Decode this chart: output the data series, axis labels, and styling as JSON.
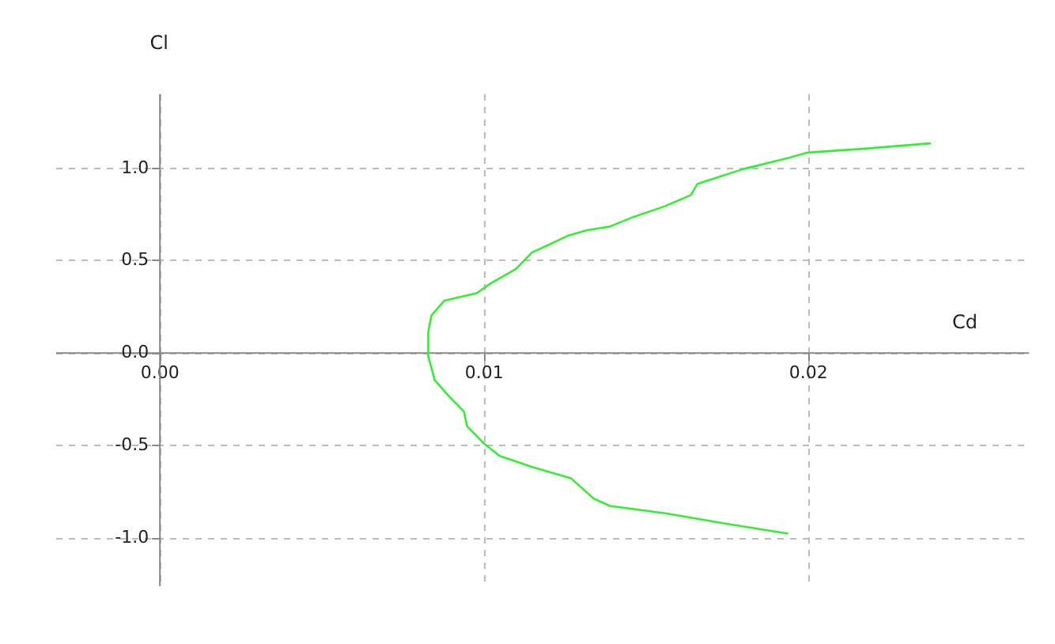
{
  "chart_data": {
    "type": "line",
    "xlabel": "Cd",
    "ylabel": "Cl",
    "x": [
      0.0238,
      0.0217,
      0.02,
      0.0194,
      0.018,
      0.0166,
      0.0164,
      0.0156,
      0.0146,
      0.0139,
      0.0132,
      0.0126,
      0.012,
      0.0115,
      0.011,
      0.0102,
      0.0098,
      0.0088,
      0.0084,
      0.0083,
      0.0083,
      0.0085,
      0.0089,
      0.0094,
      0.0095,
      0.01,
      0.0105,
      0.0115,
      0.0127,
      0.0134,
      0.0139,
      0.0156,
      0.0176,
      0.0194
    ],
    "series": [
      {
        "color": "#33ee33",
        "values": [
          1.13,
          1.1,
          1.08,
          1.05,
          0.99,
          0.91,
          0.85,
          0.79,
          0.73,
          0.68,
          0.66,
          0.63,
          0.58,
          0.54,
          0.45,
          0.37,
          0.32,
          0.28,
          0.2,
          0.11,
          -0.02,
          -0.15,
          -0.23,
          -0.32,
          -0.4,
          -0.49,
          -0.56,
          -0.62,
          -0.68,
          -0.79,
          -0.83,
          -0.87,
          -0.93,
          -0.98
        ]
      }
    ],
    "xlim": [
      -0.0032,
      0.0268
    ],
    "ylim": [
      -1.26,
      1.4
    ],
    "xticks": [
      {
        "value": 0,
        "label": "0.00"
      },
      {
        "value": 0.01,
        "label": "0.01"
      },
      {
        "value": 0.02,
        "label": "0.02"
      }
    ],
    "yticks": [
      {
        "value": -1,
        "label": "-1.0"
      },
      {
        "value": -0.5,
        "label": "-0.5"
      },
      {
        "value": 0,
        "label": "0.0"
      },
      {
        "value": 0.5,
        "label": "0.5"
      },
      {
        "value": 1,
        "label": "1.0"
      }
    ],
    "grid": true,
    "marker": "none",
    "line_style": "solid"
  }
}
